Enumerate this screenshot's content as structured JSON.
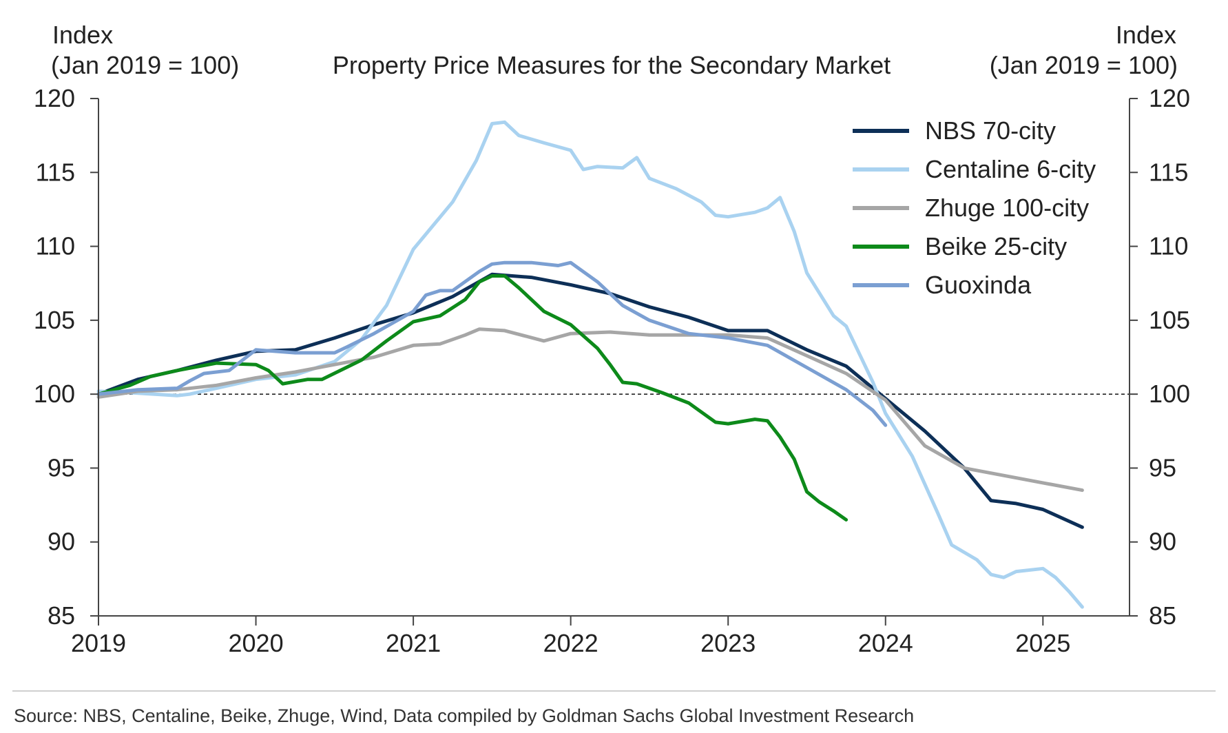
{
  "chart_data": {
    "type": "line",
    "title": "Property Price Measures for the Secondary Market",
    "ylabel_left": [
      "Index",
      "(Jan 2019 = 100)"
    ],
    "ylabel_right": [
      "Index",
      "(Jan 2019 = 100)"
    ],
    "xlim": [
      2019.0,
      2025.55
    ],
    "ylim": [
      85,
      120
    ],
    "yticks": [
      85,
      90,
      95,
      100,
      105,
      110,
      115,
      120
    ],
    "xticks": [
      "2019",
      "2020",
      "2021",
      "2022",
      "2023",
      "2024",
      "2025"
    ],
    "reference_line": {
      "y": 100,
      "style": "dashed"
    },
    "legend": {
      "position": "top-right"
    },
    "source": "Source: NBS, Centaline, Beike, Zhuge, Wind, Data compiled by Goldman Sachs Global Investment Research",
    "series": [
      {
        "name": "NBS 70-city",
        "color": "#0d2f57",
        "points": [
          [
            2019.0,
            100
          ],
          [
            2019.25,
            101.0
          ],
          [
            2019.5,
            101.6
          ],
          [
            2019.75,
            102.3
          ],
          [
            2020.0,
            102.9
          ],
          [
            2020.25,
            103.0
          ],
          [
            2020.5,
            103.8
          ],
          [
            2020.75,
            104.7
          ],
          [
            2021.0,
            105.5
          ],
          [
            2021.25,
            106.6
          ],
          [
            2021.5,
            108.1
          ],
          [
            2021.75,
            107.9
          ],
          [
            2022.0,
            107.4
          ],
          [
            2022.25,
            106.8
          ],
          [
            2022.5,
            105.9
          ],
          [
            2022.75,
            105.2
          ],
          [
            2023.0,
            104.3
          ],
          [
            2023.25,
            104.3
          ],
          [
            2023.5,
            103.0
          ],
          [
            2023.75,
            101.9
          ],
          [
            2024.0,
            99.7
          ],
          [
            2024.25,
            97.5
          ],
          [
            2024.5,
            95.0
          ],
          [
            2024.67,
            92.8
          ],
          [
            2024.83,
            92.6
          ],
          [
            2025.0,
            92.2
          ],
          [
            2025.25,
            91.0
          ]
        ]
      },
      {
        "name": "Centaline 6-city",
        "color": "#a9d2f0",
        "points": [
          [
            2019.0,
            100.2
          ],
          [
            2019.2,
            100.1
          ],
          [
            2019.5,
            99.9
          ],
          [
            2019.58,
            100.0
          ],
          [
            2019.75,
            100.4
          ],
          [
            2020.0,
            101.0
          ],
          [
            2020.25,
            101.3
          ],
          [
            2020.5,
            102.2
          ],
          [
            2020.67,
            103.7
          ],
          [
            2020.83,
            106.0
          ],
          [
            2021.0,
            109.8
          ],
          [
            2021.25,
            113.0
          ],
          [
            2021.4,
            115.8
          ],
          [
            2021.5,
            118.3
          ],
          [
            2021.58,
            118.4
          ],
          [
            2021.67,
            117.5
          ],
          [
            2021.83,
            117.0
          ],
          [
            2022.0,
            116.5
          ],
          [
            2022.08,
            115.2
          ],
          [
            2022.17,
            115.4
          ],
          [
            2022.33,
            115.3
          ],
          [
            2022.42,
            116.0
          ],
          [
            2022.5,
            114.6
          ],
          [
            2022.67,
            113.9
          ],
          [
            2022.83,
            113.0
          ],
          [
            2022.92,
            112.1
          ],
          [
            2023.0,
            112.0
          ],
          [
            2023.17,
            112.3
          ],
          [
            2023.25,
            112.6
          ],
          [
            2023.33,
            113.3
          ],
          [
            2023.42,
            111.0
          ],
          [
            2023.5,
            108.2
          ],
          [
            2023.67,
            105.3
          ],
          [
            2023.75,
            104.6
          ],
          [
            2023.92,
            100.8
          ],
          [
            2024.0,
            98.7
          ],
          [
            2024.17,
            95.8
          ],
          [
            2024.33,
            92.0
          ],
          [
            2024.42,
            89.8
          ],
          [
            2024.58,
            88.8
          ],
          [
            2024.67,
            87.8
          ],
          [
            2024.75,
            87.6
          ],
          [
            2024.83,
            88.0
          ],
          [
            2025.0,
            88.2
          ],
          [
            2025.08,
            87.6
          ],
          [
            2025.17,
            86.6
          ],
          [
            2025.25,
            85.6
          ]
        ]
      },
      {
        "name": "Zhuge 100-city",
        "color": "#a6a6a6",
        "points": [
          [
            2019.0,
            99.8
          ],
          [
            2019.25,
            100.2
          ],
          [
            2019.5,
            100.3
          ],
          [
            2019.75,
            100.6
          ],
          [
            2020.0,
            101.1
          ],
          [
            2020.25,
            101.5
          ],
          [
            2020.5,
            102.0
          ],
          [
            2020.75,
            102.5
          ],
          [
            2021.0,
            103.3
          ],
          [
            2021.17,
            103.4
          ],
          [
            2021.33,
            104.0
          ],
          [
            2021.42,
            104.4
          ],
          [
            2021.58,
            104.3
          ],
          [
            2021.83,
            103.6
          ],
          [
            2022.0,
            104.1
          ],
          [
            2022.25,
            104.2
          ],
          [
            2022.5,
            104.0
          ],
          [
            2022.75,
            104.0
          ],
          [
            2023.0,
            104.0
          ],
          [
            2023.25,
            103.8
          ],
          [
            2023.5,
            102.6
          ],
          [
            2023.75,
            101.4
          ],
          [
            2024.0,
            99.6
          ],
          [
            2024.25,
            96.5
          ],
          [
            2024.5,
            95.0
          ],
          [
            2024.75,
            94.5
          ],
          [
            2025.0,
            94.0
          ],
          [
            2025.25,
            93.5
          ]
        ]
      },
      {
        "name": "Beike 25-city",
        "color": "#0d8a1a",
        "points": [
          [
            2019.0,
            100.0
          ],
          [
            2019.2,
            100.6
          ],
          [
            2019.33,
            101.2
          ],
          [
            2019.5,
            101.6
          ],
          [
            2019.75,
            102.1
          ],
          [
            2020.0,
            102.0
          ],
          [
            2020.08,
            101.6
          ],
          [
            2020.17,
            100.7
          ],
          [
            2020.33,
            101.0
          ],
          [
            2020.42,
            101.0
          ],
          [
            2020.67,
            102.3
          ],
          [
            2020.83,
            103.6
          ],
          [
            2021.0,
            104.9
          ],
          [
            2021.17,
            105.3
          ],
          [
            2021.33,
            106.4
          ],
          [
            2021.42,
            107.6
          ],
          [
            2021.5,
            108.0
          ],
          [
            2021.58,
            108.0
          ],
          [
            2021.67,
            107.2
          ],
          [
            2021.83,
            105.6
          ],
          [
            2022.0,
            104.7
          ],
          [
            2022.17,
            103.1
          ],
          [
            2022.25,
            102.0
          ],
          [
            2022.33,
            100.8
          ],
          [
            2022.42,
            100.7
          ],
          [
            2022.58,
            100.1
          ],
          [
            2022.75,
            99.4
          ],
          [
            2022.92,
            98.1
          ],
          [
            2023.0,
            98.0
          ],
          [
            2023.17,
            98.3
          ],
          [
            2023.25,
            98.2
          ],
          [
            2023.33,
            97.1
          ],
          [
            2023.42,
            95.6
          ],
          [
            2023.5,
            93.4
          ],
          [
            2023.58,
            92.7
          ],
          [
            2023.67,
            92.1
          ],
          [
            2023.75,
            91.5
          ]
        ]
      },
      {
        "name": "Guoxinda",
        "color": "#7b9fd2",
        "points": [
          [
            2019.0,
            100.0
          ],
          [
            2019.25,
            100.3
          ],
          [
            2019.5,
            100.4
          ],
          [
            2019.58,
            100.9
          ],
          [
            2019.67,
            101.4
          ],
          [
            2019.83,
            101.6
          ],
          [
            2020.0,
            103.0
          ],
          [
            2020.25,
            102.8
          ],
          [
            2020.5,
            102.8
          ],
          [
            2020.58,
            103.2
          ],
          [
            2020.75,
            104.1
          ],
          [
            2021.0,
            105.6
          ],
          [
            2021.08,
            106.7
          ],
          [
            2021.17,
            107.0
          ],
          [
            2021.25,
            107.0
          ],
          [
            2021.42,
            108.3
          ],
          [
            2021.5,
            108.8
          ],
          [
            2021.58,
            108.9
          ],
          [
            2021.75,
            108.9
          ],
          [
            2021.92,
            108.7
          ],
          [
            2022.0,
            108.9
          ],
          [
            2022.17,
            107.6
          ],
          [
            2022.33,
            106.0
          ],
          [
            2022.5,
            105.0
          ],
          [
            2022.75,
            104.1
          ],
          [
            2023.0,
            103.8
          ],
          [
            2023.25,
            103.3
          ],
          [
            2023.5,
            101.8
          ],
          [
            2023.75,
            100.3
          ],
          [
            2023.92,
            98.9
          ],
          [
            2024.0,
            97.9
          ]
        ]
      }
    ]
  }
}
